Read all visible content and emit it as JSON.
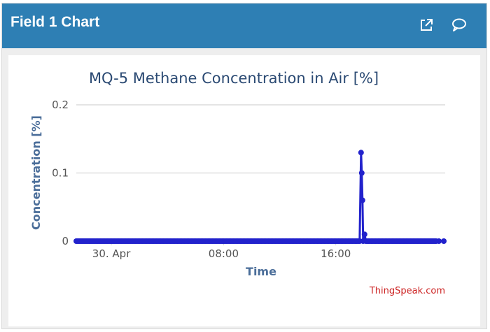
{
  "header": {
    "title": "Field 1 Chart",
    "icons": [
      "external-link-icon",
      "comment-icon"
    ]
  },
  "colors": {
    "header_bg": "#2e7fb4",
    "series": "#2222cc",
    "title": "#2b4a73",
    "axis_label": "#4a6d99",
    "credit": "#cc2222",
    "grid": "#c8c8c8"
  },
  "credit": "ThingSpeak.com",
  "chart_data": {
    "type": "line",
    "title": "MQ-5 Methane Concentration in Air [%]",
    "xlabel": "Time",
    "ylabel": "Concentration [%]",
    "x_ticks": [
      "30. Apr",
      "08:00",
      "16:00"
    ],
    "y_ticks": [
      "0",
      "0.1",
      "0.2"
    ],
    "ylim": [
      0,
      0.2
    ],
    "x_unit": "hours relative to 30 Apr 00:00",
    "xlim": [
      -2.5,
      23.8
    ],
    "grid": true,
    "legend": "none",
    "series": [
      {
        "dense_baseline": {
          "start": -2.5,
          "end": 23.7,
          "value": 0
        },
        "points": [
          {
            "x": 17.8,
            "y": 0.13
          },
          {
            "x": 17.85,
            "y": 0.1
          },
          {
            "x": 17.9,
            "y": 0.06
          },
          {
            "x": 17.95,
            "y": 0.0
          },
          {
            "x": 18.05,
            "y": 0.01
          },
          {
            "x": 18.15,
            "y": 0.0
          },
          {
            "x": 23.35,
            "y": 0.0
          },
          {
            "x": 23.7,
            "y": 0.0
          }
        ]
      }
    ]
  }
}
